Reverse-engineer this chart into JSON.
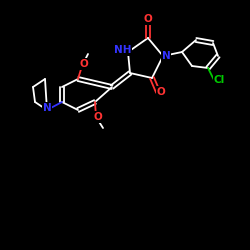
{
  "bg_color": "#000000",
  "bond_color": "#ffffff",
  "atom_colors": {
    "O": "#ff3333",
    "N": "#3333ff",
    "Cl": "#00cc00",
    "C": "#ffffff"
  },
  "bond_lw": 1.3,
  "font_size": 7.5
}
